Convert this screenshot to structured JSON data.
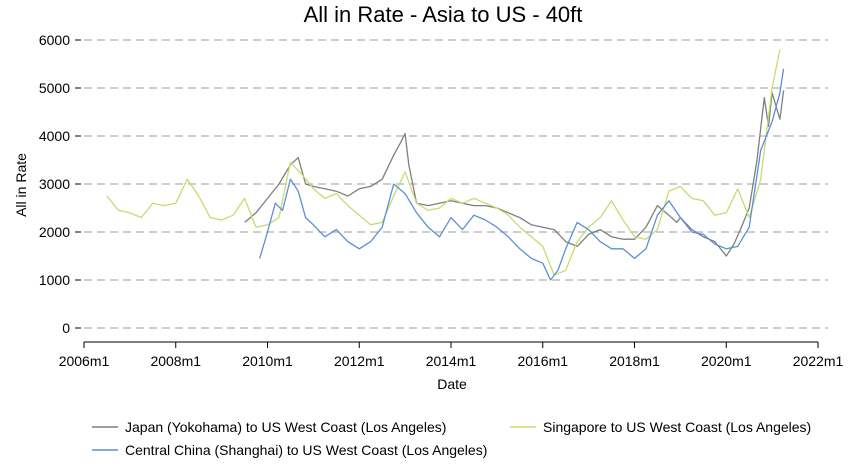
{
  "chart_data": {
    "type": "line",
    "title": "All in Rate - Asia to US - 40ft",
    "xlabel": "Date",
    "ylabel": "All in Rate",
    "xlim": [
      2006.0,
      2022.0
    ],
    "ylim": [
      0,
      6000
    ],
    "x_ticks": [
      2006,
      2008,
      2010,
      2012,
      2014,
      2016,
      2018,
      2020,
      2022
    ],
    "x_tick_labels": [
      "2006m1",
      "2008m1",
      "2010m1",
      "2012m1",
      "2014m1",
      "2016m1",
      "2018m1",
      "2020m1",
      "2022m1"
    ],
    "y_ticks": [
      0,
      1000,
      2000,
      3000,
      4000,
      5000,
      6000
    ],
    "y_tick_labels": [
      "0",
      "1000",
      "2000",
      "3000",
      "4000",
      "5000",
      "6000"
    ],
    "grid": "horizontal dashed",
    "legend_position": "bottom",
    "series": [
      {
        "name": "Japan (Yokohama) to US West Coast (Los Angeles)",
        "color": "#7f7f7f",
        "x": [
          2009.5,
          2009.75,
          2010.0,
          2010.25,
          2010.5,
          2010.67,
          2010.83,
          2011.0,
          2011.25,
          2011.5,
          2011.75,
          2012.0,
          2012.25,
          2012.5,
          2012.75,
          2012.92,
          2013.0,
          2013.08,
          2013.25,
          2013.5,
          2013.75,
          2014.0,
          2014.25,
          2014.5,
          2014.75,
          2015.0,
          2015.25,
          2015.5,
          2015.75,
          2016.0,
          2016.25,
          2016.5,
          2016.75,
          2017.0,
          2017.25,
          2017.5,
          2017.75,
          2018.0,
          2018.25,
          2018.5,
          2018.75,
          2018.92,
          2019.0,
          2019.25,
          2019.5,
          2019.75,
          2020.0,
          2020.17,
          2020.33,
          2020.5,
          2020.67,
          2020.83,
          2020.92,
          2021.0,
          2021.17,
          2021.25
        ],
        "values": [
          2200,
          2400,
          2700,
          3000,
          3400,
          3550,
          3000,
          2950,
          2900,
          2850,
          2750,
          2900,
          2950,
          3100,
          3600,
          3900,
          4050,
          3400,
          2600,
          2550,
          2600,
          2650,
          2600,
          2550,
          2550,
          2500,
          2400,
          2300,
          2150,
          2100,
          2050,
          1800,
          1700,
          1950,
          2050,
          1900,
          1850,
          1850,
          2100,
          2550,
          2350,
          2200,
          2300,
          2050,
          1900,
          1800,
          1500,
          1750,
          2100,
          2500,
          3500,
          4800,
          4200,
          4900,
          4350,
          4950
        ]
      },
      {
        "name": "Singapore to US West Coast (Los Angeles)",
        "color": "#c6dc6f",
        "x": [
          2006.5,
          2006.75,
          2007.0,
          2007.25,
          2007.5,
          2007.75,
          2008.0,
          2008.25,
          2008.5,
          2008.75,
          2009.0,
          2009.25,
          2009.5,
          2009.75,
          2010.0,
          2010.25,
          2010.5,
          2010.75,
          2011.0,
          2011.25,
          2011.5,
          2011.75,
          2012.0,
          2012.25,
          2012.5,
          2012.75,
          2013.0,
          2013.25,
          2013.5,
          2013.75,
          2014.0,
          2014.25,
          2014.5,
          2014.75,
          2015.0,
          2015.25,
          2015.5,
          2015.75,
          2016.0,
          2016.25,
          2016.5,
          2016.75,
          2017.0,
          2017.25,
          2017.5,
          2017.75,
          2018.0,
          2018.25,
          2018.5,
          2018.75,
          2019.0,
          2019.25,
          2019.5,
          2019.75,
          2020.0,
          2020.25,
          2020.5,
          2020.75,
          2021.0,
          2021.17
        ],
        "values": [
          2750,
          2450,
          2400,
          2300,
          2600,
          2550,
          2600,
          3100,
          2750,
          2300,
          2250,
          2350,
          2700,
          2100,
          2150,
          2300,
          3450,
          3200,
          2900,
          2700,
          2800,
          2550,
          2350,
          2150,
          2200,
          2750,
          3250,
          2600,
          2450,
          2500,
          2700,
          2600,
          2700,
          2600,
          2500,
          2350,
          2100,
          1900,
          1700,
          1100,
          1200,
          1800,
          2100,
          2300,
          2650,
          2250,
          1900,
          1850,
          2050,
          2850,
          2950,
          2700,
          2650,
          2350,
          2400,
          2900,
          2300,
          3100,
          5000,
          5800
        ]
      },
      {
        "name": "Central China (Shanghai) to US West Coast (Los Angeles)",
        "color": "#5b8fd6",
        "x": [
          2009.83,
          2010.0,
          2010.17,
          2010.33,
          2010.5,
          2010.67,
          2010.83,
          2011.0,
          2011.25,
          2011.5,
          2011.75,
          2012.0,
          2012.25,
          2012.5,
          2012.75,
          2013.0,
          2013.25,
          2013.5,
          2013.75,
          2014.0,
          2014.25,
          2014.5,
          2014.75,
          2015.0,
          2015.25,
          2015.5,
          2015.75,
          2016.0,
          2016.17,
          2016.33,
          2016.5,
          2016.75,
          2017.0,
          2017.25,
          2017.5,
          2017.75,
          2018.0,
          2018.25,
          2018.5,
          2018.75,
          2019.0,
          2019.25,
          2019.5,
          2019.75,
          2020.0,
          2020.25,
          2020.5,
          2020.75,
          2021.0,
          2021.17,
          2021.25
        ],
        "values": [
          1450,
          2000,
          2600,
          2450,
          3100,
          2850,
          2300,
          2150,
          1900,
          2050,
          1800,
          1650,
          1800,
          2100,
          3000,
          2800,
          2400,
          2100,
          1900,
          2300,
          2050,
          2350,
          2250,
          2100,
          1900,
          1650,
          1450,
          1350,
          1000,
          1200,
          1650,
          2200,
          2050,
          1800,
          1650,
          1650,
          1450,
          1650,
          2350,
          2650,
          2300,
          2000,
          1950,
          1750,
          1650,
          1700,
          2100,
          3700,
          4300,
          4900,
          5400
        ]
      }
    ]
  }
}
